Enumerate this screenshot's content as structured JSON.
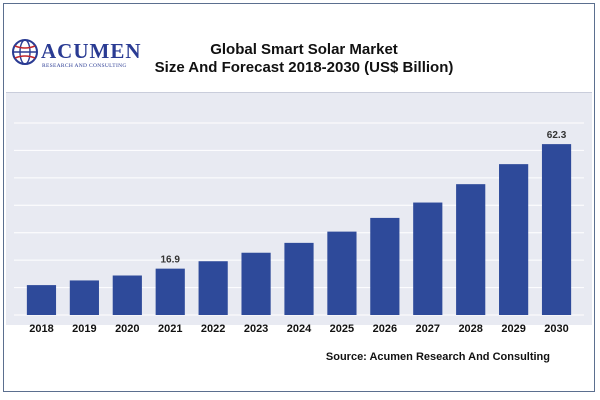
{
  "header": {
    "title_line1": "Global Smart Solar Market",
    "title_line2": "Size And Forecast 2018-2030 (US$ Billion)",
    "logo_wordmark": "ACUMEN",
    "logo_tagline": "RESEARCH AND CONSULTING"
  },
  "source": "Source: Acumen Research And Consulting",
  "colors": {
    "bar": "#2e4a9a",
    "plot_bg": "#e8eaf2",
    "gridline": "#ffffff",
    "frame": "#5b6f8f"
  },
  "chart_data": {
    "type": "bar",
    "title": "Global Smart Solar Market Size And Forecast 2018-2030 (US$ Billion)",
    "categories": [
      "2018",
      "2019",
      "2020",
      "2021",
      "2022",
      "2023",
      "2024",
      "2025",
      "2026",
      "2027",
      "2028",
      "2029",
      "2030"
    ],
    "values": [
      10.9,
      12.6,
      14.4,
      16.9,
      19.6,
      22.7,
      26.3,
      30.4,
      35.4,
      41.0,
      47.7,
      55.0,
      62.3
    ],
    "data_labels": [
      {
        "category": "2021",
        "label": "16.9"
      },
      {
        "category": "2030",
        "label": "62.3"
      }
    ],
    "ylim": [
      0,
      70
    ],
    "xlabel": "",
    "ylabel": "",
    "grid": "horizontal",
    "legend": "none"
  }
}
